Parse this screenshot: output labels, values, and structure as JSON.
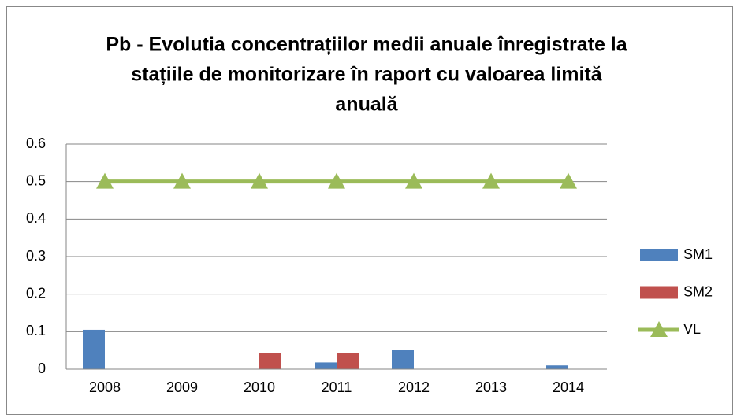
{
  "chart_data": {
    "type": "bar",
    "title": [
      "Pb - Evolutia concentrațiilor medii anuale înregistrate la",
      "stațiile de monitorizare în raport cu valoarea limită",
      "anuală"
    ],
    "categories": [
      "2008",
      "2009",
      "2010",
      "2011",
      "2012",
      "2013",
      "2014"
    ],
    "series": [
      {
        "name": "SM1",
        "color": "#4f81bd",
        "type": "bar",
        "values": [
          0.105,
          null,
          null,
          0.018,
          0.052,
          null,
          0.01
        ]
      },
      {
        "name": "SM2",
        "color": "#c0504d",
        "type": "bar",
        "values": [
          null,
          null,
          0.043,
          0.043,
          null,
          null,
          null
        ]
      },
      {
        "name": "VL",
        "color": "#9bbb59",
        "type": "line",
        "values": [
          0.5,
          0.5,
          0.5,
          0.5,
          0.5,
          0.5,
          0.5
        ]
      }
    ],
    "ylim": [
      0,
      0.6
    ],
    "yticks": [
      0,
      0.1,
      0.2,
      0.3,
      0.4,
      0.5,
      0.6
    ],
    "grid": true,
    "legend": "right"
  }
}
